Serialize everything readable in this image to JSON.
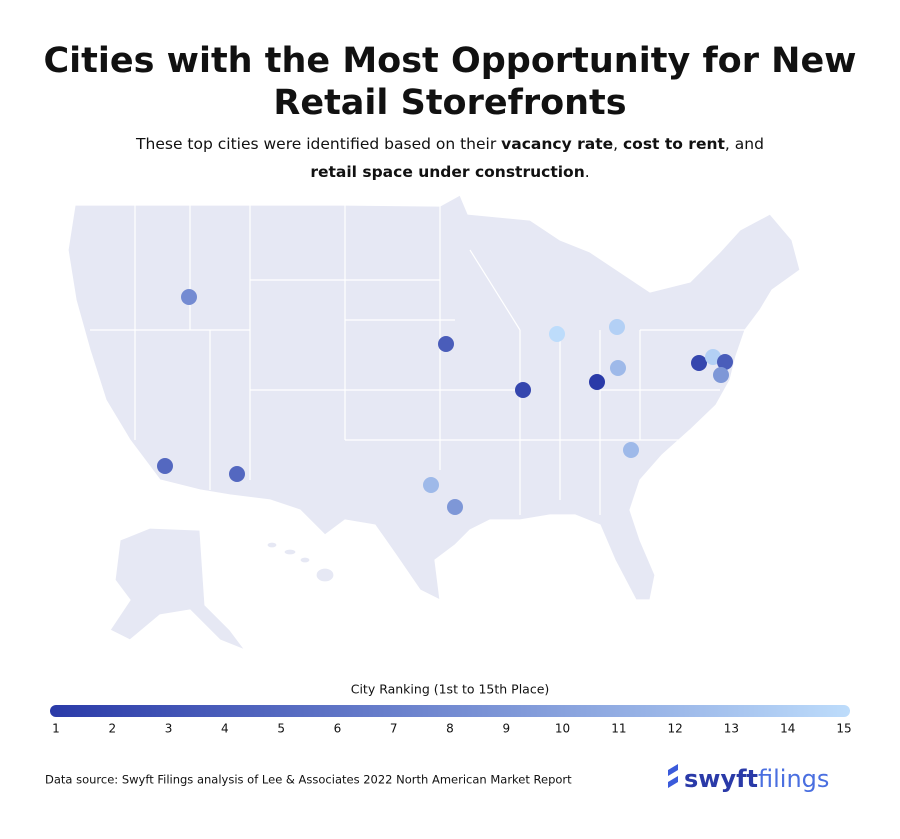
{
  "title_line_1": "Cities with the Most Opportunity for New",
  "title_line_2": "Retail Storefronts",
  "subtitle": {
    "text_1": "These top cities were identified based on their ",
    "bold_1": "vacancy rate",
    "text_2": ", ",
    "bold_2": "cost to rent",
    "text_3": ", and",
    "bold_3": "retail space under construction",
    "text_4": "."
  },
  "map": {
    "cities": [
      {
        "rank": 8
      },
      {
        "rank": 4
      },
      {
        "rank": 15
      },
      {
        "rank": 14
      },
      {
        "rank": 12
      },
      {
        "rank": 2
      },
      {
        "rank": 1
      },
      {
        "rank": 2
      },
      {
        "rank": 14
      },
      {
        "rank": 4
      },
      {
        "rank": 9
      },
      {
        "rank": 5
      },
      {
        "rank": 5
      },
      {
        "rank": 12
      },
      {
        "rank": 9
      },
      {
        "rank": 12
      }
    ],
    "color_first": "#2a3aa8",
    "color_last": "#bddcfb"
  },
  "legend": {
    "title": "City Ranking (1st to 15th Place)",
    "ticks": [
      1,
      2,
      3,
      4,
      5,
      6,
      7,
      8,
      9,
      10,
      11,
      12,
      13,
      14,
      15
    ]
  },
  "source": "Data source: Swyft Filings analysis of Lee & Associates 2022 North American Market Report",
  "logo": {
    "part_1": "swyft",
    "part_2": "filings"
  }
}
